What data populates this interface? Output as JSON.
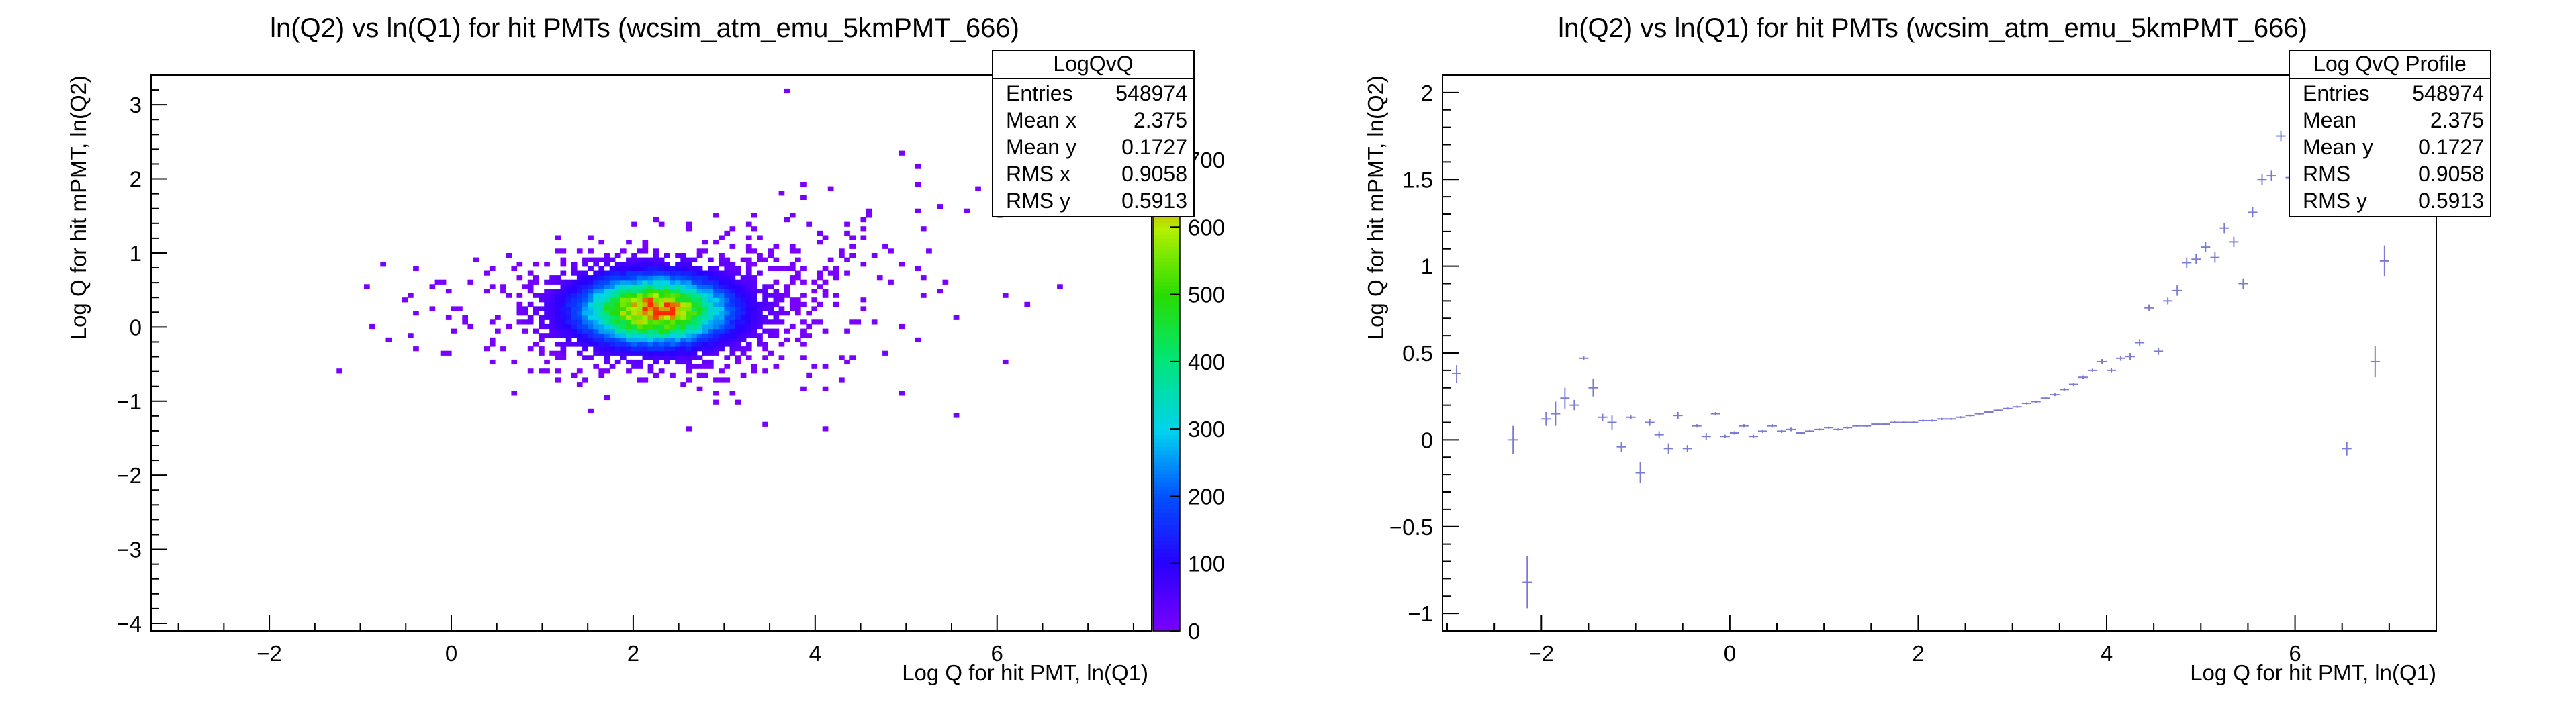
{
  "chart_data": [
    {
      "type": "heatmap",
      "title": "ln(Q2) vs ln(Q1) for hit PMTs (wcsim_atm_emu_5kmPMT_666)",
      "xlabel": "Log Q for hit PMT, ln(Q1)",
      "ylabel": "Log Q for hit mPMT, ln(Q2)",
      "xlim": [
        -3.3,
        7.7
      ],
      "ylim": [
        -4.1,
        3.4
      ],
      "xticks": [
        -2,
        0,
        2,
        4,
        6
      ],
      "yticks": [
        -4,
        -3,
        -2,
        -1,
        0,
        1,
        2,
        3
      ],
      "colorbar": {
        "min": 0,
        "max": 700,
        "ticks": [
          0,
          100,
          200,
          300,
          400,
          500,
          600,
          700
        ]
      },
      "peak": {
        "x": 2.2,
        "y": 0.2,
        "value": 700
      },
      "stats": {
        "name": "LogQvQ",
        "rows": [
          {
            "label": "Entries",
            "value": "548974"
          },
          {
            "label": "Mean x",
            "value": "2.375"
          },
          {
            "label": "Mean y",
            "value": "0.1727"
          },
          {
            "label": "RMS x",
            "value": "0.9058"
          },
          {
            "label": "RMS y",
            "value": "0.5913"
          }
        ]
      }
    },
    {
      "type": "scatter",
      "title": "ln(Q2) vs ln(Q1) for hit PMTs (wcsim_atm_emu_5kmPMT_666)",
      "xlabel": "Log Q for hit PMT, ln(Q1)",
      "ylabel": "Log Q for hit mPMT, ln(Q2)",
      "xlim": [
        -3.05,
        7.5
      ],
      "ylim": [
        -1.1,
        2.1
      ],
      "xticks": [
        -2,
        0,
        2,
        4,
        6
      ],
      "yticks": [
        -1,
        -0.5,
        0,
        0.5,
        1,
        1.5,
        2
      ],
      "series": [
        {
          "color": "#7b7bd4",
          "points": [
            {
              "x": -2.9,
              "y": 0.38,
              "ey": 0.05
            },
            {
              "x": -2.3,
              "y": 0.0,
              "ey": 0.08
            },
            {
              "x": -2.15,
              "y": -0.82,
              "ey": 0.15
            },
            {
              "x": -1.95,
              "y": 0.12,
              "ey": 0.04
            },
            {
              "x": -1.85,
              "y": 0.15,
              "ey": 0.07
            },
            {
              "x": -1.75,
              "y": 0.24,
              "ey": 0.06
            },
            {
              "x": -1.65,
              "y": 0.2,
              "ey": 0.03
            },
            {
              "x": -1.55,
              "y": 0.47,
              "ey": 0.01
            },
            {
              "x": -1.45,
              "y": 0.3,
              "ey": 0.05
            },
            {
              "x": -1.35,
              "y": 0.13,
              "ey": 0.02
            },
            {
              "x": -1.25,
              "y": 0.1,
              "ey": 0.04
            },
            {
              "x": -1.15,
              "y": -0.04,
              "ey": 0.03
            },
            {
              "x": -1.05,
              "y": 0.13,
              "ey": 0.01
            },
            {
              "x": -0.95,
              "y": -0.19,
              "ey": 0.06
            },
            {
              "x": -0.85,
              "y": 0.1,
              "ey": 0.02
            },
            {
              "x": -0.75,
              "y": 0.03,
              "ey": 0.02
            },
            {
              "x": -0.65,
              "y": -0.05,
              "ey": 0.03
            },
            {
              "x": -0.55,
              "y": 0.14,
              "ey": 0.02
            },
            {
              "x": -0.45,
              "y": -0.05,
              "ey": 0.02
            },
            {
              "x": -0.35,
              "y": 0.08,
              "ey": 0.01
            },
            {
              "x": -0.25,
              "y": 0.02,
              "ey": 0.02
            },
            {
              "x": -0.15,
              "y": 0.15,
              "ey": 0.01
            },
            {
              "x": -0.05,
              "y": 0.02,
              "ey": 0.01
            },
            {
              "x": 0.05,
              "y": 0.04,
              "ey": 0.01
            },
            {
              "x": 0.15,
              "y": 0.08,
              "ey": 0.01
            },
            {
              "x": 0.25,
              "y": 0.02,
              "ey": 0.01
            },
            {
              "x": 0.35,
              "y": 0.05,
              "ey": 0.01
            },
            {
              "x": 0.45,
              "y": 0.08,
              "ey": 0.01
            },
            {
              "x": 0.55,
              "y": 0.05,
              "ey": 0.01
            },
            {
              "x": 0.65,
              "y": 0.06,
              "ey": 0.01
            },
            {
              "x": 0.75,
              "y": 0.04,
              "ey": 0.005
            },
            {
              "x": 0.85,
              "y": 0.05,
              "ey": 0.005
            },
            {
              "x": 0.95,
              "y": 0.06,
              "ey": 0.005
            },
            {
              "x": 1.05,
              "y": 0.07,
              "ey": 0.005
            },
            {
              "x": 1.15,
              "y": 0.06,
              "ey": 0.005
            },
            {
              "x": 1.25,
              "y": 0.07,
              "ey": 0.005
            },
            {
              "x": 1.35,
              "y": 0.08,
              "ey": 0.005
            },
            {
              "x": 1.45,
              "y": 0.08,
              "ey": 0.005
            },
            {
              "x": 1.55,
              "y": 0.09,
              "ey": 0.005
            },
            {
              "x": 1.65,
              "y": 0.09,
              "ey": 0.005
            },
            {
              "x": 1.75,
              "y": 0.1,
              "ey": 0.005
            },
            {
              "x": 1.85,
              "y": 0.1,
              "ey": 0.005
            },
            {
              "x": 1.95,
              "y": 0.1,
              "ey": 0.005
            },
            {
              "x": 2.05,
              "y": 0.11,
              "ey": 0.005
            },
            {
              "x": 2.15,
              "y": 0.11,
              "ey": 0.005
            },
            {
              "x": 2.25,
              "y": 0.12,
              "ey": 0.005
            },
            {
              "x": 2.35,
              "y": 0.12,
              "ey": 0.005
            },
            {
              "x": 2.45,
              "y": 0.13,
              "ey": 0.005
            },
            {
              "x": 2.55,
              "y": 0.14,
              "ey": 0.005
            },
            {
              "x": 2.65,
              "y": 0.15,
              "ey": 0.005
            },
            {
              "x": 2.75,
              "y": 0.16,
              "ey": 0.005
            },
            {
              "x": 2.85,
              "y": 0.17,
              "ey": 0.005
            },
            {
              "x": 2.95,
              "y": 0.18,
              "ey": 0.005
            },
            {
              "x": 3.05,
              "y": 0.19,
              "ey": 0.005
            },
            {
              "x": 3.15,
              "y": 0.21,
              "ey": 0.006
            },
            {
              "x": 3.25,
              "y": 0.22,
              "ey": 0.006
            },
            {
              "x": 3.35,
              "y": 0.24,
              "ey": 0.007
            },
            {
              "x": 3.45,
              "y": 0.26,
              "ey": 0.008
            },
            {
              "x": 3.55,
              "y": 0.29,
              "ey": 0.009
            },
            {
              "x": 3.65,
              "y": 0.32,
              "ey": 0.01
            },
            {
              "x": 3.75,
              "y": 0.36,
              "ey": 0.01
            },
            {
              "x": 3.85,
              "y": 0.4,
              "ey": 0.01
            },
            {
              "x": 3.95,
              "y": 0.45,
              "ey": 0.015
            },
            {
              "x": 4.05,
              "y": 0.4,
              "ey": 0.015
            },
            {
              "x": 4.15,
              "y": 0.47,
              "ey": 0.015
            },
            {
              "x": 4.25,
              "y": 0.48,
              "ey": 0.02
            },
            {
              "x": 4.35,
              "y": 0.56,
              "ey": 0.02
            },
            {
              "x": 4.45,
              "y": 0.76,
              "ey": 0.02
            },
            {
              "x": 4.55,
              "y": 0.51,
              "ey": 0.02
            },
            {
              "x": 4.65,
              "y": 0.8,
              "ey": 0.02
            },
            {
              "x": 4.75,
              "y": 0.86,
              "ey": 0.03
            },
            {
              "x": 4.85,
              "y": 1.02,
              "ey": 0.03
            },
            {
              "x": 4.95,
              "y": 1.04,
              "ey": 0.03
            },
            {
              "x": 5.05,
              "y": 1.11,
              "ey": 0.03
            },
            {
              "x": 5.15,
              "y": 1.05,
              "ey": 0.03
            },
            {
              "x": 5.25,
              "y": 1.22,
              "ey": 0.03
            },
            {
              "x": 5.35,
              "y": 1.14,
              "ey": 0.03
            },
            {
              "x": 5.45,
              "y": 0.9,
              "ey": 0.03
            },
            {
              "x": 5.55,
              "y": 1.31,
              "ey": 0.03
            },
            {
              "x": 5.65,
              "y": 1.5,
              "ey": 0.03
            },
            {
              "x": 5.75,
              "y": 1.52,
              "ey": 0.03
            },
            {
              "x": 5.85,
              "y": 1.75,
              "ey": 0.03
            },
            {
              "x": 5.95,
              "y": 1.51,
              "ey": 0.03
            },
            {
              "x": 6.55,
              "y": -0.05,
              "ey": 0.04
            },
            {
              "x": 6.85,
              "y": 0.45,
              "ey": 0.09
            },
            {
              "x": 6.95,
              "y": 1.03,
              "ey": 0.09
            }
          ]
        }
      ],
      "stats": {
        "name": "Log QvQ Profile",
        "rows": [
          {
            "label": "Entries",
            "value": "548974"
          },
          {
            "label": "Mean",
            "value": "2.375"
          },
          {
            "label": "Mean y",
            "value": "0.1727"
          },
          {
            "label": "RMS",
            "value": "0.9058"
          },
          {
            "label": "RMS y",
            "value": "0.5913"
          }
        ]
      }
    }
  ]
}
